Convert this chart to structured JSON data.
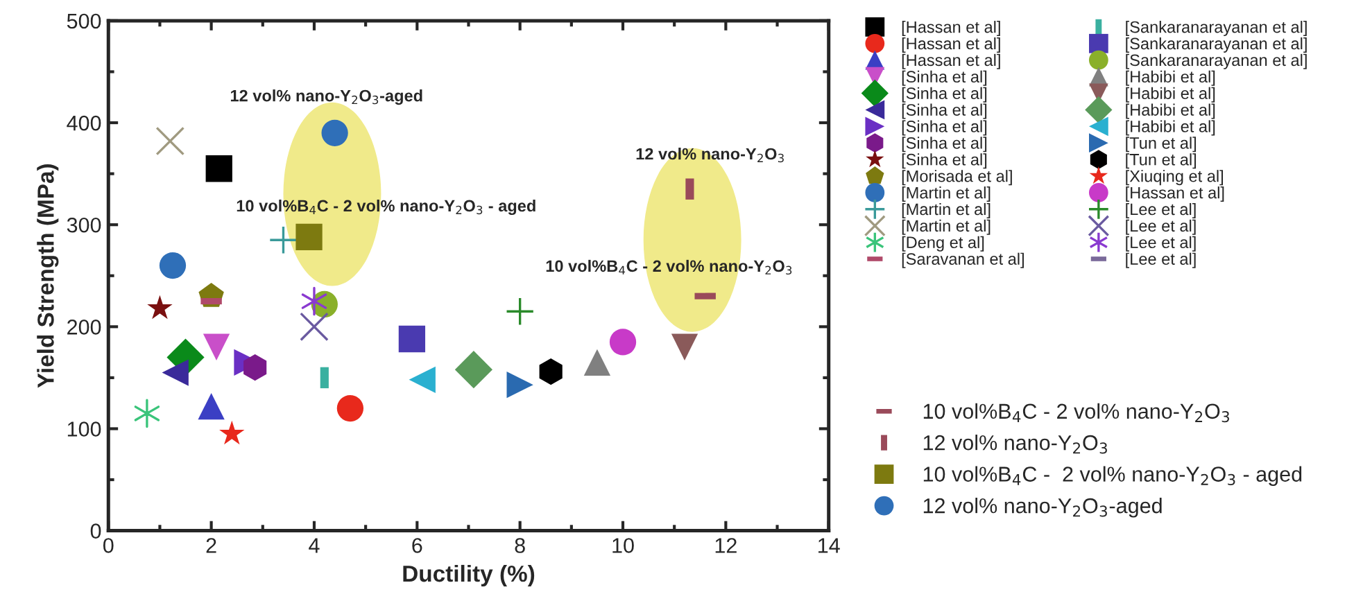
{
  "chart_data": {
    "type": "scatter",
    "xlabel": "Ductility (%)",
    "ylabel": "Yield Strength (MPa)",
    "xlim": [
      0,
      14
    ],
    "ylim": [
      0,
      500
    ],
    "xticks": [
      0,
      2,
      4,
      6,
      8,
      10,
      12,
      14
    ],
    "yticks": [
      0,
      100,
      200,
      300,
      400,
      500
    ],
    "grid": false,
    "legend": "right",
    "annotations": [
      "12 vol% nano-Y$_{2}$O$_{3}$-aged",
      "10 vol%B$_{4}$C - 2 vol% nano-Y$_{2}$O$_{3}$ - aged",
      "12 vol% nano-Y$_{2}$O$_{3}$",
      "10 vol%B$_{4}$C - 2 vol% nano-Y$_{2}$O$_{3}$"
    ],
    "series": [
      {
        "name": "[Hassan et al]",
        "color": "#000000",
        "marker": "square",
        "x": [
          2.15
        ],
        "values": [
          355
        ]
      },
      {
        "name": "[Hassan et al]",
        "color": "#e8291c",
        "marker": "circle",
        "x": [
          4.7
        ],
        "values": [
          120
        ]
      },
      {
        "name": "[Hassan et al]",
        "color": "#3b3fc4",
        "marker": "triangle",
        "x": [
          2.0
        ],
        "values": [
          122
        ]
      },
      {
        "name": "[Sinha et al]",
        "color": "#c94fc9",
        "x": [
          2.1
        ],
        "values": [
          180
        ]
      },
      {
        "name": "[Sinha et al]",
        "color": "#0a8a1a",
        "marker": "diamond",
        "x": [
          1.5
        ],
        "values": [
          170
        ]
      },
      {
        "name": "[Sinha et al]",
        "color": "#3a2a9a",
        "x": [
          1.3
        ],
        "values": [
          155
        ]
      },
      {
        "name": "[Sinha et al]",
        "color": "#6a2fc4",
        "x": [
          2.7
        ],
        "values": [
          165
        ]
      },
      {
        "name": "[Sinha et al]",
        "color": "#7a1a8a",
        "x": [
          2.85
        ],
        "values": [
          160
        ]
      },
      {
        "name": "[Sinha et al]",
        "color": "#7a1010",
        "marker": "star",
        "x": [
          1.0
        ],
        "values": [
          218
        ]
      },
      {
        "name": "[Morisada et al]",
        "color": "#7d7a10",
        "x": [
          2.0
        ],
        "values": [
          230
        ]
      },
      {
        "name": "[Martin et al]",
        "color": "#2f6fb8",
        "marker": "circle",
        "x": [
          1.25
        ],
        "values": [
          260
        ]
      },
      {
        "name": "[Martin et al]",
        "color": "#3a9a9a",
        "x": [
          3.4
        ],
        "values": [
          285
        ]
      },
      {
        "name": "[Martin et al]",
        "color": "#a09a80",
        "x": [
          1.2
        ],
        "values": [
          382
        ]
      },
      {
        "name": "[Deng et al]",
        "color": "#3ac47a",
        "x": [
          0.75
        ],
        "values": [
          115
        ]
      },
      {
        "name": "[Saravanan et al]",
        "color": "#b04a6a",
        "x": [
          2.0
        ],
        "values": [
          225
        ]
      },
      {
        "name": "[Sankaranarayanan et al]",
        "color": "#3ab0a0",
        "x": [
          4.2
        ],
        "values": [
          150
        ]
      },
      {
        "name": "[Sankaranarayanan et al]",
        "color": "#4a3ab0",
        "marker": "square",
        "x": [
          5.9
        ],
        "values": [
          188
        ]
      },
      {
        "name": "[Sankaranarayanan et al]",
        "color": "#8ab02a",
        "marker": "circle",
        "x": [
          4.2
        ],
        "values": [
          222
        ]
      },
      {
        "name": "[Habibi et al]",
        "color": "#808080",
        "marker": "triangle",
        "x": [
          9.5
        ],
        "values": [
          165
        ]
      },
      {
        "name": "[Habibi et al]",
        "color": "#8a5a5a",
        "x": [
          11.2
        ],
        "values": [
          180
        ]
      },
      {
        "name": "[Habibi et al]",
        "color": "#5a9a5a",
        "marker": "diamond",
        "x": [
          7.1
        ],
        "values": [
          158
        ]
      },
      {
        "name": "[Habibi et al]",
        "color": "#2ab0d0",
        "x": [
          6.1
        ],
        "values": [
          148
        ]
      },
      {
        "name": "[Tun et al]",
        "color": "#2a6ab0",
        "x": [
          8.0
        ],
        "values": [
          143
        ]
      },
      {
        "name": "[Tun et al]",
        "color": "#000000",
        "x": [
          8.6
        ],
        "values": [
          156
        ]
      },
      {
        "name": "[Xiuqing et al]",
        "color": "#e8281c",
        "marker": "star",
        "x": [
          2.4
        ],
        "values": [
          95
        ]
      },
      {
        "name": "[Hassan et al]",
        "color": "#c83ac8",
        "marker": "circle",
        "x": [
          10.0
        ],
        "values": [
          185
        ]
      },
      {
        "name": "[Lee et al]",
        "color": "#2a8a2a",
        "x": [
          8.0
        ],
        "values": [
          215
        ]
      },
      {
        "name": "[Lee et al]",
        "color": "#6a5aa0",
        "x": [
          4.0
        ],
        "values": [
          200
        ]
      },
      {
        "name": "[Lee et al]",
        "color": "#8a3ad0",
        "x": [
          4.0
        ],
        "values": [
          225
        ]
      },
      {
        "name": "[Lee et al]",
        "color": "#7a6a9a",
        "x": [
          null
        ],
        "values": [
          null
        ]
      },
      {
        "name": "10 vol%B$_{4}$C - 2 vol% nano-Y$_{2}$O$_{3}$",
        "color": "#9a4a5a",
        "x": [
          11.6
        ],
        "values": [
          230
        ]
      },
      {
        "name": "12 vol% nano-Y$_{2}$O$_{3}$",
        "color": "#9a4a5a",
        "x": [
          11.3
        ],
        "values": [
          335
        ]
      },
      {
        "name": "10 vol%B$_{4}$C -  2 vol% nano-Y$_{2}$O$_{3}$ - aged",
        "color": "#7d7a10",
        "marker": "square",
        "x": [
          3.9
        ],
        "values": [
          288
        ]
      },
      {
        "name": "12 vol% nano-Y$_{2}$O$_{3}$-aged",
        "color": "#2f6fb8",
        "marker": "circle",
        "x": [
          4.4
        ],
        "values": [
          390
        ]
      }
    ]
  }
}
